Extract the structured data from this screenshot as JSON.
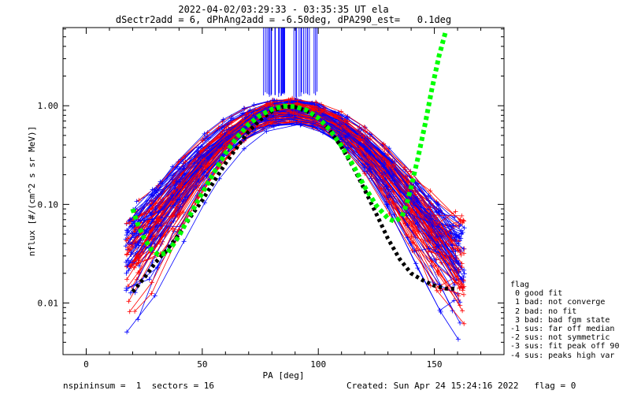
{
  "title_line1": "2022-04-02/03:29:33 - 03:35:35 UT ela",
  "title_line2": "dSectr2add = 6, dPhAng2add = -6.50deg, dPA290_est=   0.1deg",
  "footer": {
    "left": "nspininsum =  1  sectors = 16",
    "right": "Created: Sun Apr 24 15:24:16 2022   flag = 0"
  },
  "legend": {
    "title": "flag",
    "items": [
      " 0 good fit",
      " 1 bad: not converge",
      " 2 bad: no fit",
      " 3 bad: bad fgm state",
      "-1 sus: far off median",
      "-2 sus: not symmetric",
      "-3 sus: fit peak off 90",
      "-4 sus: peaks high var"
    ]
  },
  "chart_data": {
    "type": "line",
    "xlabel": "PA [deg]",
    "ylabel": "nflux [#/(cm^2 s sr MeV)]",
    "xlim": [
      -10,
      180
    ],
    "ylim": [
      0.003,
      6.2
    ],
    "yscale": "log",
    "x_ticks": [
      0,
      50,
      100,
      150
    ],
    "x_tick_labels": [
      "0",
      "50",
      "100",
      "150"
    ],
    "y_ticks": [
      0.01,
      0.1,
      1.0
    ],
    "y_tick_labels": [
      "0.01",
      "0.10",
      "1.00"
    ],
    "colors": {
      "trace_red": "#ff0000",
      "trace_blue": "#0000ff",
      "fit_green": "#00ff00",
      "median_black": "#000000"
    },
    "series": [
      {
        "x": [
          20,
          25,
          30,
          35,
          40,
          45,
          50,
          55,
          60,
          65,
          70,
          75,
          80,
          85,
          90,
          95,
          100,
          105,
          110,
          115,
          120,
          125,
          130,
          135,
          140,
          145,
          150,
          155,
          160
        ],
        "y": [
          0.013,
          0.018,
          0.026,
          0.035,
          0.05,
          0.075,
          0.11,
          0.17,
          0.26,
          0.38,
          0.55,
          0.72,
          0.88,
          0.98,
          0.97,
          0.88,
          0.74,
          0.56,
          0.38,
          0.24,
          0.14,
          0.08,
          0.045,
          0.028,
          0.02,
          0.017,
          0.015,
          0.014,
          0.014
        ]
      },
      {
        "x": [
          20,
          22,
          25,
          28,
          31,
          35,
          40,
          45,
          50,
          55,
          60,
          65,
          70,
          75,
          80,
          85,
          90,
          95,
          100,
          105,
          110,
          115,
          120,
          125,
          130,
          133,
          136,
          138,
          140,
          143,
          146,
          149,
          152,
          155
        ],
        "y": [
          0.09,
          0.065,
          0.045,
          0.035,
          0.031,
          0.032,
          0.048,
          0.08,
          0.13,
          0.21,
          0.33,
          0.48,
          0.65,
          0.8,
          0.92,
          0.99,
          0.98,
          0.9,
          0.75,
          0.57,
          0.39,
          0.25,
          0.15,
          0.097,
          0.072,
          0.067,
          0.075,
          0.1,
          0.15,
          0.3,
          0.65,
          1.5,
          3.2,
          5.8
        ]
      }
    ]
  }
}
